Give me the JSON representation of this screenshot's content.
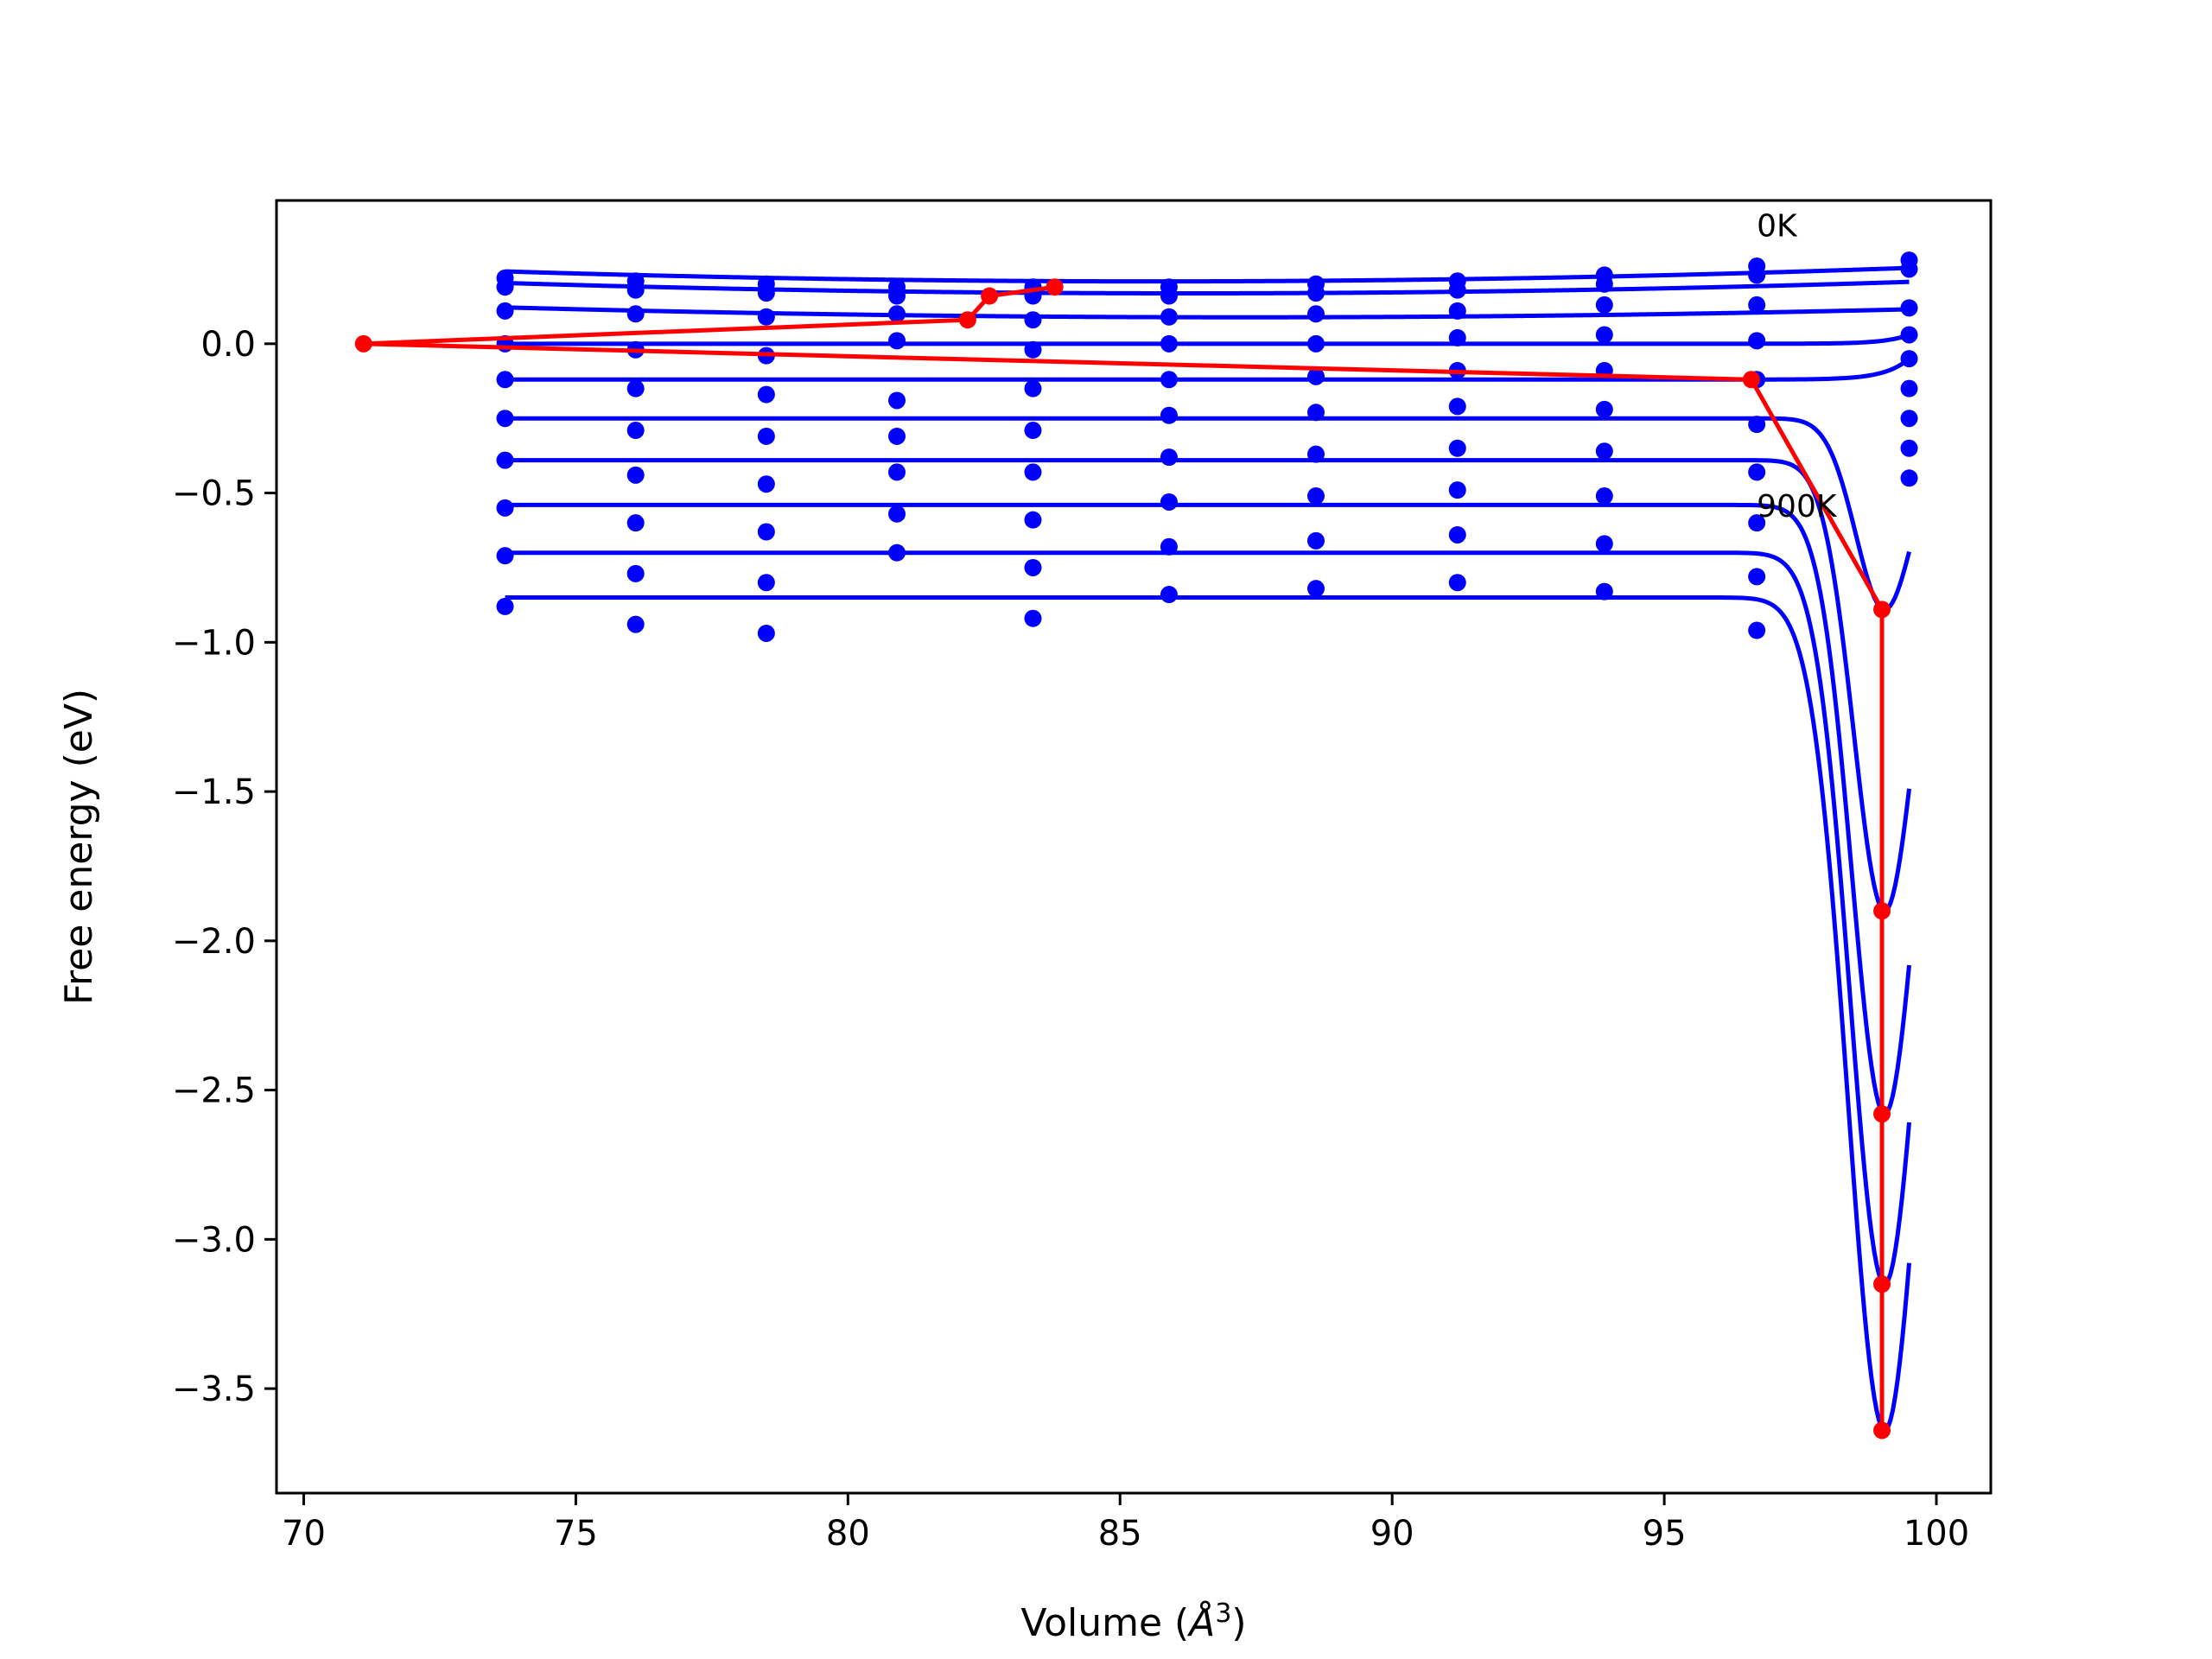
{
  "chart_data": {
    "type": "line",
    "xlabel_text": "Volume (",
    "xlabel_symbol": "Å",
    "xlabel_sup": "3",
    "xlabel_close": ")",
    "ylabel": "Free energy (eV)",
    "xlim": [
      69.5,
      101.0
    ],
    "ylim": [
      -3.85,
      0.48
    ],
    "xticks": [
      70,
      75,
      80,
      85,
      90,
      95,
      100
    ],
    "xtick_labels": [
      "70",
      "75",
      "80",
      "85",
      "90",
      "95",
      "100"
    ],
    "yticks": [
      0.0,
      -0.5,
      -1.0,
      -1.5,
      -2.0,
      -2.5,
      -3.0,
      -3.5
    ],
    "ytick_labels": [
      "0.0",
      "−0.5",
      "−1.0",
      "−1.5",
      "−2.0",
      "−2.5",
      "−3.0",
      "−3.5"
    ],
    "annotations": [
      {
        "text": "0K",
        "x": 96.7,
        "y": 0.36
      },
      {
        "text": "900K",
        "x": 96.7,
        "y": -0.58
      }
    ],
    "colors": {
      "isotherm": "#0000ff",
      "minimum_path": "#ff0000"
    },
    "volumes": [
      73.7,
      76.1,
      78.5,
      80.9,
      83.4,
      85.9,
      88.6,
      91.2,
      93.9,
      96.7,
      99.5
    ],
    "isotherms": [
      {
        "fit": {
          "flat": 0.21,
          "a": -0.008,
          "b": 0.0047,
          "vmin": 83.5,
          "dip_depth": 0.0,
          "dip_center": 99.1,
          "dip_width": 0.6
        },
        "points": [
          0.22,
          0.21,
          0.2,
          0.19,
          0.19,
          0.19,
          0.2,
          0.21,
          0.23,
          0.26,
          0.28
        ]
      },
      {
        "fit": {
          "flat": 0.17,
          "a": -0.008,
          "b": 0.0044,
          "vmin": 84.0,
          "dip_depth": 0.0,
          "dip_center": 99.1,
          "dip_width": 0.6
        },
        "points": [
          0.19,
          0.18,
          0.17,
          0.16,
          0.16,
          0.16,
          0.17,
          0.18,
          0.2,
          0.23,
          0.25
        ]
      },
      {
        "fit": {
          "flat": 0.09,
          "a": -0.008,
          "b": 0.0036,
          "vmin": 84.5,
          "dip_depth": 0.0,
          "dip_center": 99.1,
          "dip_width": 0.6
        },
        "points": [
          0.11,
          0.1,
          0.09,
          0.1,
          0.08,
          0.09,
          0.1,
          0.11,
          0.13,
          0.13,
          0.12
        ]
      },
      {
        "fit": {
          "flat": 0.0,
          "a": 0.0,
          "b": 0.0,
          "vmin": 85.0,
          "dip_depth": 0.0,
          "dip_center": 99.1,
          "dip_width": 0.6
        },
        "points": [
          0.0,
          -0.02,
          -0.04,
          0.01,
          -0.02,
          0.0,
          0.0,
          0.02,
          0.03,
          0.01,
          0.03
        ]
      },
      {
        "fit": {
          "flat": -0.12,
          "a": 0.0,
          "b": 0.0,
          "vmin": 85.0,
          "dip_depth": 0.0,
          "dip_center": 99.1,
          "dip_width": 0.6
        },
        "points": [
          -0.12,
          -0.15,
          -0.17,
          -0.19,
          -0.15,
          -0.12,
          -0.11,
          -0.09,
          -0.09,
          -0.12,
          -0.05
        ]
      },
      {
        "fit": {
          "flat": -0.25,
          "a": 0.0,
          "b": 0.0,
          "vmin": 85.0,
          "dip_depth": 0.64,
          "dip_center": 99.05,
          "dip_width": 0.75
        },
        "points": [
          -0.25,
          -0.29,
          -0.31,
          -0.31,
          -0.29,
          -0.24,
          -0.23,
          -0.21,
          -0.22,
          -0.27,
          -0.15
        ]
      },
      {
        "fit": {
          "flat": -0.39,
          "a": 0.0,
          "b": 0.0,
          "vmin": 85.0,
          "dip_depth": 1.51,
          "dip_center": 99.05,
          "dip_width": 0.8
        },
        "points": [
          -0.39,
          -0.44,
          -0.47,
          -0.43,
          -0.43,
          -0.38,
          -0.37,
          -0.35,
          -0.36,
          -0.43,
          -0.25
        ]
      },
      {
        "fit": {
          "flat": -0.54,
          "a": 0.0,
          "b": 0.0,
          "vmin": 85.0,
          "dip_depth": 2.04,
          "dip_center": 99.05,
          "dip_width": 0.85
        },
        "points": [
          -0.55,
          -0.6,
          -0.63,
          -0.57,
          -0.59,
          -0.53,
          -0.51,
          -0.49,
          -0.51,
          -0.6,
          -0.35
        ]
      },
      {
        "fit": {
          "flat": -0.7,
          "a": 0.0,
          "b": 0.0,
          "vmin": 85.0,
          "dip_depth": 2.45,
          "dip_center": 99.05,
          "dip_width": 0.9
        },
        "points": [
          -0.71,
          -0.77,
          -0.8,
          -0.7,
          -0.75,
          -0.68,
          -0.66,
          -0.64,
          -0.67,
          -0.78,
          -0.45
        ]
      },
      {
        "fit": {
          "flat": -0.85,
          "a": 0.0,
          "b": 0.0,
          "vmin": 85.0,
          "dip_depth": 2.79,
          "dip_center": 99.05,
          "dip_width": 0.95
        },
        "points": [
          -0.88,
          -0.94,
          -0.97,
          null,
          -0.92,
          -0.84,
          -0.82,
          -0.8,
          -0.83,
          -0.96,
          null
        ]
      }
    ],
    "minimum_path": {
      "x": [
        83.8,
        82.6,
        82.2,
        71.1,
        96.6,
        99.0,
        99.0,
        99.0,
        99.0,
        99.0
      ],
      "y": [
        0.19,
        0.16,
        0.08,
        0.0,
        -0.12,
        -0.89,
        -1.9,
        -2.58,
        -3.15,
        -3.64
      ]
    }
  }
}
